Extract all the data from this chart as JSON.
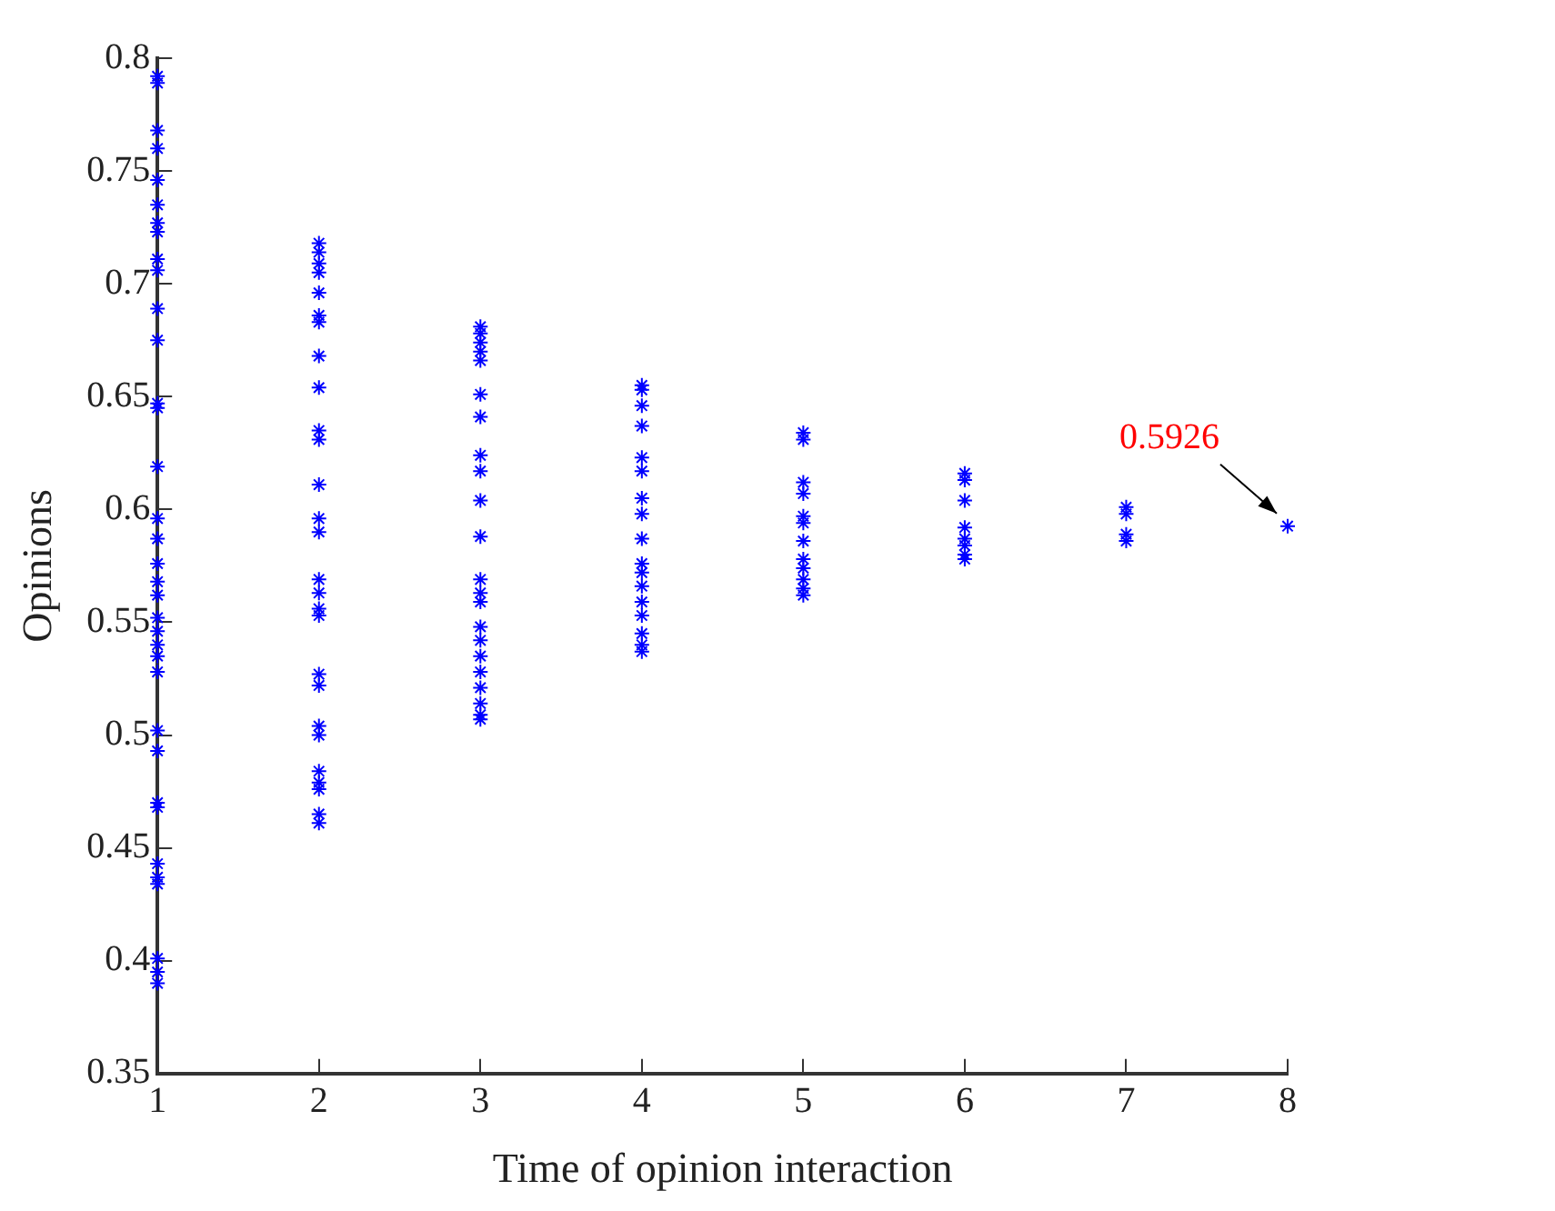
{
  "chart_data": {
    "type": "scatter",
    "xlabel": "Time of opinion interaction",
    "ylabel": "Opinions",
    "marker": "cross",
    "grid": false,
    "xlim": [
      1,
      8
    ],
    "xticks": [
      1,
      2,
      3,
      4,
      5,
      6,
      7,
      8
    ],
    "ylim": [
      0.35,
      0.8
    ],
    "yticks": [
      0.35,
      0.4,
      0.45,
      0.5,
      0.55,
      0.6,
      0.65,
      0.7,
      0.75,
      0.8
    ],
    "annotations": [
      {
        "text": "0.5926",
        "x": 8,
        "y": 0.5926
      }
    ],
    "series": [
      {
        "color": "#0000ff",
        "x": [
          1,
          1,
          1,
          1,
          1,
          1,
          1,
          1,
          1,
          1,
          1,
          1,
          1,
          1,
          1,
          1,
          1,
          1,
          1,
          1,
          1,
          1,
          1,
          1,
          1,
          1,
          1,
          1,
          1,
          1,
          1,
          1,
          1,
          1,
          1,
          2,
          2,
          2,
          2,
          2,
          2,
          2,
          2,
          2,
          2,
          2,
          2,
          2,
          2,
          2,
          2,
          2,
          2,
          2,
          2,
          2,
          2,
          2,
          2,
          2,
          2,
          2,
          3,
          3,
          3,
          3,
          3,
          3,
          3,
          3,
          3,
          3,
          3,
          3,
          3,
          3,
          3,
          3,
          3,
          3,
          3,
          3,
          3,
          3,
          4,
          4,
          4,
          4,
          4,
          4,
          4,
          4,
          4,
          4,
          4,
          4,
          4,
          4,
          4,
          4,
          4,
          5,
          5,
          5,
          5,
          5,
          5,
          5,
          5,
          5,
          5,
          5,
          5,
          6,
          6,
          6,
          6,
          6,
          6,
          6,
          6,
          7,
          7,
          7,
          7,
          8
        ],
        "values": [
          0.792,
          0.789,
          0.768,
          0.76,
          0.746,
          0.735,
          0.727,
          0.723,
          0.711,
          0.706,
          0.689,
          0.675,
          0.647,
          0.645,
          0.619,
          0.596,
          0.587,
          0.576,
          0.568,
          0.562,
          0.552,
          0.546,
          0.54,
          0.535,
          0.528,
          0.502,
          0.493,
          0.47,
          0.468,
          0.443,
          0.437,
          0.434,
          0.401,
          0.395,
          0.39,
          0.718,
          0.714,
          0.709,
          0.705,
          0.696,
          0.686,
          0.683,
          0.668,
          0.654,
          0.635,
          0.631,
          0.611,
          0.596,
          0.59,
          0.569,
          0.563,
          0.556,
          0.553,
          0.527,
          0.522,
          0.504,
          0.5,
          0.484,
          0.479,
          0.476,
          0.465,
          0.461,
          0.681,
          0.678,
          0.674,
          0.67,
          0.666,
          0.651,
          0.641,
          0.624,
          0.617,
          0.604,
          0.588,
          0.569,
          0.563,
          0.559,
          0.548,
          0.542,
          0.535,
          0.528,
          0.521,
          0.514,
          0.509,
          0.507,
          0.655,
          0.653,
          0.646,
          0.637,
          0.623,
          0.617,
          0.605,
          0.598,
          0.587,
          0.576,
          0.572,
          0.566,
          0.559,
          0.553,
          0.545,
          0.54,
          0.537,
          0.634,
          0.631,
          0.612,
          0.607,
          0.597,
          0.594,
          0.586,
          0.578,
          0.574,
          0.569,
          0.565,
          0.562,
          0.616,
          0.613,
          0.604,
          0.592,
          0.587,
          0.584,
          0.58,
          0.578,
          0.601,
          0.598,
          0.589,
          0.586,
          0.5926
        ]
      }
    ]
  }
}
